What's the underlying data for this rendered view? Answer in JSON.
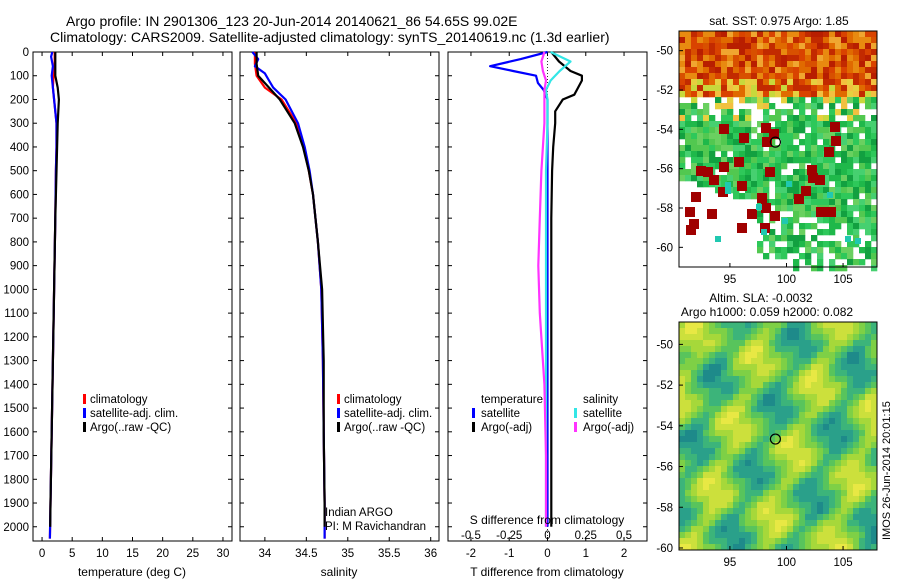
{
  "header": {
    "line1": "Argo profile: IN 2901306_123 20-Jun-2014 20140621_86 54.65S 99.02E",
    "line2": "Climatology: CARS2009. Satellite-adjusted climatology: synTS_20140619.nc (1.3d earlier)"
  },
  "colors": {
    "climatology": "#ff0000",
    "satellite": "#0000ff",
    "argo": "#000000",
    "sat_salinity": "#33e6e6",
    "argo_salinity": "#ff33ff"
  },
  "depth_axis": {
    "ticks": [
      "0",
      "100",
      "200",
      "300",
      "400",
      "500",
      "600",
      "700",
      "800",
      "900",
      "1000",
      "1100",
      "1200",
      "1300",
      "1400",
      "1500",
      "1600",
      "1700",
      "1800",
      "1900",
      "2000"
    ]
  },
  "chart_data": [
    {
      "id": "temperature",
      "type": "line",
      "xlabel": "temperature (deg C)",
      "ylabel": "",
      "xlim": [
        -1.5,
        31.5
      ],
      "ylim": [
        2060,
        0
      ],
      "xticks": [
        "0",
        "5",
        "10",
        "15",
        "20",
        "25",
        "30"
      ],
      "xtick_values": [
        0,
        5,
        10,
        15,
        20,
        25,
        30
      ],
      "legend": [
        "climatology",
        "satellite-adj. clim.",
        "Argo(..raw -QC)"
      ],
      "series": [
        {
          "name": "climatology",
          "color": "#ff0000",
          "depth": [
            0,
            20,
            60,
            100,
            150,
            200,
            300,
            400,
            500,
            700,
            1000,
            1300,
            1600,
            1900,
            2050
          ],
          "values": [
            2.1,
            2.1,
            2.1,
            1.9,
            1.8,
            2.0,
            2.4,
            2.4,
            2.3,
            2.2,
            2.0,
            1.8,
            1.6,
            1.4,
            1.3
          ]
        },
        {
          "name": "satellite-adj. clim.",
          "color": "#0000ff",
          "depth": [
            0,
            20,
            60,
            100,
            150,
            200,
            300,
            400,
            500,
            700,
            1000,
            1300,
            1600,
            1900,
            2050
          ],
          "values": [
            1.7,
            1.5,
            1.8,
            1.6,
            1.8,
            2.0,
            2.4,
            2.4,
            2.3,
            2.2,
            2.0,
            1.8,
            1.6,
            1.4,
            1.3
          ]
        },
        {
          "name": "Argo(..raw -QC)",
          "color": "#000000",
          "depth": [
            0,
            20,
            60,
            100,
            150,
            200,
            250,
            300,
            400,
            500,
            700,
            1000,
            1300,
            1600,
            1900,
            2000
          ],
          "values": [
            2.2,
            2.2,
            2.2,
            2.2,
            2.6,
            2.8,
            2.7,
            2.6,
            2.5,
            2.4,
            2.2,
            2.0,
            1.8,
            1.6,
            1.4,
            1.35
          ]
        }
      ]
    },
    {
      "id": "salinity",
      "type": "line",
      "xlabel": "salinity",
      "ylabel": "",
      "xlim": [
        33.7,
        36.1
      ],
      "ylim": [
        2060,
        0
      ],
      "xticks": [
        "34",
        "34.5",
        "35",
        "35.5",
        "36"
      ],
      "xtick_values": [
        34,
        34.5,
        35,
        35.5,
        36
      ],
      "legend": [
        "climatology",
        "satellite-adj. clim.",
        "Argo(..raw -QC)"
      ],
      "annotation": [
        "Indian ARGO",
        "PI: M Ravichandran"
      ],
      "series": [
        {
          "name": "climatology",
          "color": "#ff0000",
          "depth": [
            0,
            50,
            100,
            150,
            200,
            300,
            400,
            500,
            600,
            800,
            1000,
            1300,
            1600,
            1900,
            2050
          ],
          "values": [
            33.88,
            33.88,
            33.9,
            34.0,
            34.2,
            34.38,
            34.47,
            34.53,
            34.58,
            34.64,
            34.68,
            34.7,
            34.71,
            34.72,
            34.72
          ]
        },
        {
          "name": "satellite-adj. clim.",
          "color": "#0000ff",
          "depth": [
            0,
            30,
            60,
            90,
            120,
            150,
            200,
            300,
            400,
            500,
            600,
            800,
            1000,
            1300,
            1600,
            1900,
            2050
          ],
          "values": [
            33.85,
            33.92,
            33.88,
            34.0,
            34.05,
            34.1,
            34.25,
            34.4,
            34.48,
            34.54,
            34.58,
            34.64,
            34.68,
            34.7,
            34.71,
            34.72,
            34.72
          ]
        },
        {
          "name": "Argo(..raw -QC)",
          "color": "#000000",
          "depth": [
            0,
            50,
            100,
            150,
            200,
            300,
            400,
            500,
            600,
            800,
            1000,
            1300,
            1600,
            1900,
            2000
          ],
          "values": [
            33.9,
            33.9,
            33.92,
            34.05,
            34.18,
            34.36,
            34.46,
            34.53,
            34.58,
            34.64,
            34.69,
            34.71,
            34.71,
            34.72,
            34.72
          ]
        }
      ]
    },
    {
      "id": "difference",
      "type": "line",
      "xlabel": "T difference from climatology",
      "xlabel_top": "S difference from climatology",
      "ylabel": "",
      "xlim": [
        -2.6,
        2.6
      ],
      "ylim": [
        2060,
        0
      ],
      "xticks": [
        "-2",
        "-1",
        "0",
        "1",
        "2"
      ],
      "xtick_values": [
        -2,
        -1,
        0,
        1,
        2
      ],
      "xticks_top": [
        "-0.5",
        "-0.25",
        "0",
        "0.25",
        "0.5"
      ],
      "xtick_top_values": [
        -0.5,
        -0.25,
        0,
        0.25,
        0.5
      ],
      "legend_left_header": "temperature",
      "legend_right_header": "salinity",
      "legend": [
        "satellite",
        "Argo(-adj)",
        "satellite",
        "Argo(-adj)"
      ],
      "series": [
        {
          "name": "satellite",
          "quantity": "temperature",
          "color": "#0000ff",
          "depth": [
            0,
            30,
            60,
            80,
            100,
            130,
            160,
            200,
            300,
            500,
            800,
            1200,
            1600,
            2000
          ],
          "values": [
            0.0,
            -0.7,
            -1.5,
            -0.9,
            -0.3,
            -0.25,
            -0.1,
            0.0,
            0.0,
            0.0,
            0.0,
            0.0,
            0.0,
            0.0
          ]
        },
        {
          "name": "Argo(-adj)",
          "quantity": "temperature",
          "color": "#000000",
          "depth": [
            0,
            40,
            80,
            100,
            120,
            150,
            180,
            200,
            250,
            300,
            400,
            500,
            700,
            1000,
            1400,
            1800,
            2000
          ],
          "values": [
            0.1,
            0.3,
            0.6,
            0.9,
            0.9,
            0.8,
            0.7,
            0.4,
            0.2,
            0.2,
            0.15,
            0.12,
            0.1,
            0.1,
            0.1,
            0.1,
            0.1
          ]
        },
        {
          "name": "satellite",
          "quantity": "salinity",
          "color": "#33e6e6",
          "depth": [
            0,
            40,
            80,
            120,
            160,
            200,
            300,
            500,
            800,
            1200,
            1600,
            2000
          ],
          "values": [
            0.02,
            0.15,
            0.08,
            0.02,
            -0.01,
            0.0,
            0.0,
            -0.01,
            -0.01,
            -0.01,
            -0.01,
            -0.01
          ]
        },
        {
          "name": "Argo(-adj)",
          "quantity": "salinity",
          "color": "#ff33ff",
          "depth": [
            0,
            40,
            80,
            120,
            160,
            200,
            300,
            400,
            500,
            700,
            900,
            1100,
            1400,
            1700,
            2000
          ],
          "values": [
            -0.02,
            -0.04,
            -0.03,
            -0.01,
            -0.02,
            -0.02,
            -0.02,
            -0.03,
            -0.04,
            -0.05,
            -0.06,
            -0.05,
            -0.02,
            -0.01,
            -0.01
          ]
        }
      ]
    },
    {
      "id": "sst_map",
      "type": "heatmap",
      "title": "sat. SST: 0.975 Argo: 1.85",
      "xlim": [
        90.5,
        108
      ],
      "ylim": [
        -61,
        -49
      ],
      "xticks": [
        "95",
        "100",
        "105"
      ],
      "xtick_values": [
        95,
        100,
        105
      ],
      "yticks": [
        "-50",
        "-52",
        "-54",
        "-56",
        "-58",
        "-60"
      ],
      "ytick_values": [
        -50,
        -52,
        -54,
        -56,
        -58,
        -60
      ],
      "marker": {
        "lon": 99.02,
        "lat": -54.65
      }
    },
    {
      "id": "sla_map",
      "type": "heatmap",
      "title": "Altim. SLA: -0.0032",
      "subtitle": "Argo h1000: 0.059 h2000: 0.082",
      "xlim": [
        90.5,
        108
      ],
      "ylim": [
        -60.1,
        -48.9
      ],
      "xticks": [
        "95",
        "100",
        "105"
      ],
      "xtick_values": [
        95,
        100,
        105
      ],
      "yticks": [
        "-50",
        "-52",
        "-54",
        "-56",
        "-58",
        "-60"
      ],
      "ytick_values": [
        -50,
        -52,
        -54,
        -56,
        -58,
        -60
      ],
      "marker": {
        "lon": 99.02,
        "lat": -54.65
      }
    }
  ],
  "footer": {
    "timestamp": "IMOS 26-Jun-2014 20:01:15"
  }
}
